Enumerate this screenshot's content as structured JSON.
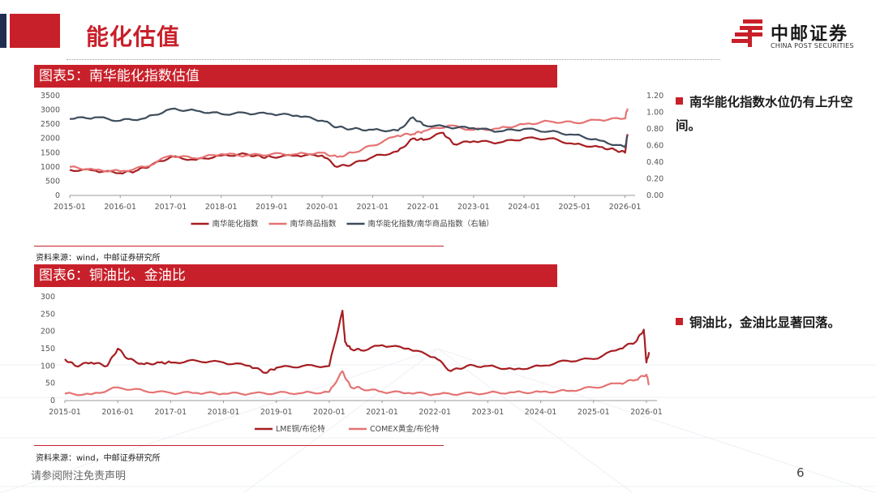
{
  "page": {
    "title": "能化估值",
    "footer_note": "请参阅附注免责声明",
    "page_number": "6",
    "colors": {
      "accent": "#c8202a",
      "navy": "#1f2d4f"
    }
  },
  "logo": {
    "cn": "中邮证券",
    "en": "CHINA POST SECURITIES",
    "icon": "china-post-logo-icon"
  },
  "figures": [
    {
      "header": "图表5：南华能化指数估值",
      "source": "资料来源：wind，中邮证券研究所",
      "bullet": "南华能化指数水位仍有上升空间。"
    },
    {
      "header": "图表6：铜油比、金油比",
      "source": "资料来源：wind，中邮证券研究所",
      "bullet": "铜油比，金油比显著回落。"
    }
  ],
  "chart_data": [
    {
      "type": "line",
      "x_ticks": [
        "2015-01",
        "2016-01",
        "2017-01",
        "2018-01",
        "2019-01",
        "2020-01",
        "2021-01",
        "2022-01",
        "2023-01",
        "2024-01",
        "2025-01",
        "2026-01"
      ],
      "ylim": [
        0,
        3500
      ],
      "y_ticks": [
        0,
        500,
        1000,
        1500,
        2000,
        2500,
        3000,
        3500
      ],
      "y2lim": [
        0,
        1.2
      ],
      "y2_ticks": [
        "0.00",
        "0.20",
        "0.40",
        "0.60",
        "0.80",
        "1.00",
        "1.20"
      ],
      "legend_position": "bottom",
      "series": [
        {
          "name": "南华能化指数",
          "axis": "left",
          "color": "#a61e22",
          "x": [
            2015.0,
            2015.5,
            2016.0,
            2016.3,
            2016.6,
            2017.0,
            2017.5,
            2018.0,
            2018.5,
            2018.8,
            2019.0,
            2019.5,
            2020.0,
            2020.3,
            2020.6,
            2021.0,
            2021.5,
            2021.8,
            2022.0,
            2022.4,
            2022.6,
            2023.0,
            2023.5,
            2024.0,
            2024.5,
            2025.0,
            2025.5,
            2025.8,
            2026.0,
            2026.05
          ],
          "values": [
            900,
            870,
            780,
            850,
            1050,
            1350,
            1250,
            1400,
            1450,
            1350,
            1350,
            1400,
            1400,
            1000,
            1100,
            1350,
            1550,
            2000,
            1950,
            2200,
            1800,
            1900,
            1850,
            2000,
            2000,
            1800,
            1700,
            1600,
            1500,
            2150
          ]
        },
        {
          "name": "南华商品指数",
          "axis": "left",
          "color": "#e57373",
          "x": [
            2015.0,
            2015.5,
            2016.0,
            2016.5,
            2017.0,
            2017.5,
            2018.0,
            2018.5,
            2019.0,
            2019.5,
            2020.0,
            2020.3,
            2020.6,
            2021.0,
            2021.5,
            2021.8,
            2022.0,
            2022.5,
            2023.0,
            2023.5,
            2024.0,
            2024.5,
            2025.0,
            2025.5,
            2026.0,
            2026.05
          ],
          "values": [
            1000,
            900,
            850,
            1000,
            1400,
            1300,
            1450,
            1400,
            1450,
            1450,
            1500,
            1350,
            1500,
            1750,
            2100,
            2150,
            2250,
            2450,
            2300,
            2350,
            2500,
            2600,
            2550,
            2650,
            2700,
            3050
          ]
        },
        {
          "name": "南华能化指数/南华商品指数（右轴）",
          "axis": "right",
          "color": "#3e4d5c",
          "x": [
            2015.0,
            2015.5,
            2016.0,
            2016.5,
            2017.0,
            2017.5,
            2018.0,
            2018.5,
            2019.0,
            2019.5,
            2020.0,
            2020.3,
            2020.6,
            2021.0,
            2021.5,
            2021.8,
            2022.0,
            2022.5,
            2023.0,
            2023.5,
            2024.0,
            2024.5,
            2025.0,
            2025.5,
            2026.0,
            2026.05
          ],
          "values": [
            0.92,
            0.94,
            0.9,
            0.93,
            1.04,
            1.02,
            0.98,
            0.99,
            0.98,
            0.96,
            0.9,
            0.82,
            0.8,
            0.79,
            0.78,
            0.94,
            0.85,
            0.82,
            0.81,
            0.77,
            0.8,
            0.77,
            0.73,
            0.66,
            0.58,
            0.72
          ]
        }
      ]
    },
    {
      "type": "line",
      "x_ticks": [
        "2015-01",
        "2016-01",
        "2017-01",
        "2018-01",
        "2019-01",
        "2020-01",
        "2021-01",
        "2022-01",
        "2023-01",
        "2024-01",
        "2025-01",
        "2026-01"
      ],
      "ylim": [
        0,
        300
      ],
      "y_ticks": [
        0,
        50,
        100,
        150,
        200,
        250,
        300
      ],
      "legend_position": "bottom",
      "series": [
        {
          "name": "LME铜/布伦特",
          "color": "#a61e22",
          "x": [
            2015.0,
            2015.2,
            2015.5,
            2015.8,
            2016.0,
            2016.2,
            2016.5,
            2016.8,
            2017.0,
            2017.5,
            2018.0,
            2018.5,
            2018.8,
            2019.0,
            2019.5,
            2020.0,
            2020.25,
            2020.3,
            2020.4,
            2020.6,
            2021.0,
            2021.5,
            2022.0,
            2022.3,
            2022.6,
            2023.0,
            2023.5,
            2024.0,
            2024.5,
            2025.0,
            2025.5,
            2025.8,
            2025.95,
            2026.0,
            2026.05
          ],
          "values": [
            120,
            100,
            110,
            100,
            150,
            120,
            105,
            110,
            110,
            115,
            110,
            100,
            80,
            95,
            100,
            100,
            260,
            170,
            150,
            145,
            160,
            150,
            125,
            85,
            100,
            100,
            90,
            100,
            115,
            120,
            150,
            170,
            205,
            110,
            140
          ]
        },
        {
          "name": "COMEX黄金/布伦特",
          "color": "#e57373",
          "x": [
            2015.0,
            2015.5,
            2016.0,
            2016.5,
            2017.0,
            2017.5,
            2018.0,
            2018.5,
            2019.0,
            2019.5,
            2020.0,
            2020.25,
            2020.4,
            2020.6,
            2021.0,
            2021.5,
            2022.0,
            2022.5,
            2023.0,
            2023.5,
            2024.0,
            2024.5,
            2025.0,
            2025.5,
            2025.8,
            2026.0,
            2026.05
          ],
          "values": [
            20,
            18,
            38,
            28,
            22,
            22,
            20,
            20,
            22,
            22,
            25,
            85,
            40,
            35,
            25,
            22,
            18,
            20,
            22,
            24,
            25,
            28,
            38,
            50,
            60,
            75,
            45
          ]
        }
      ]
    }
  ]
}
